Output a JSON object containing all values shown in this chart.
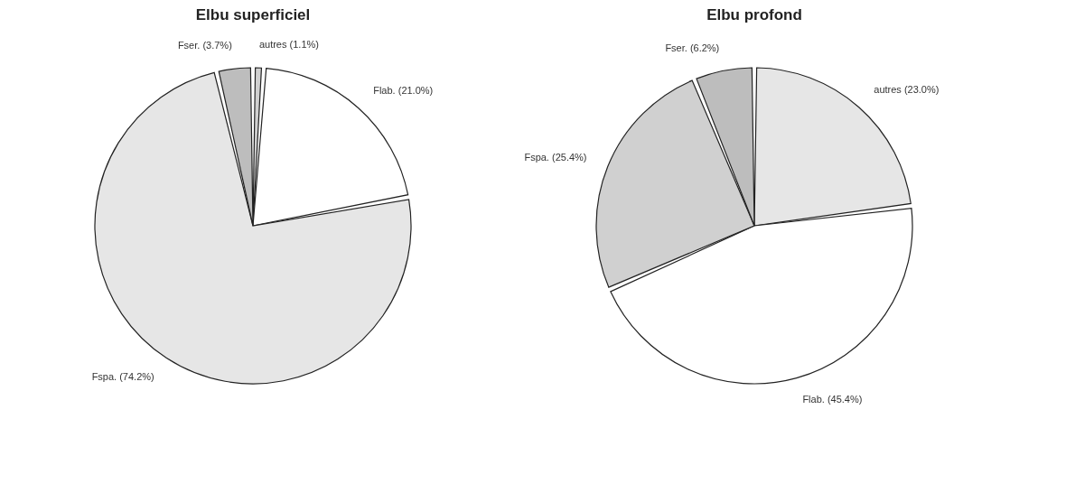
{
  "chart_data": [
    {
      "type": "pie",
      "title": "Elbu superficiel",
      "categories": [
        "autres (1.1%)",
        "Flab. (21.0%)",
        "Fspa. (74.2%)",
        "Fser. (3.7%)"
      ],
      "values": [
        1.1,
        21.0,
        74.2,
        3.7
      ],
      "colors": [
        "#d0d0d0",
        "#ffffff",
        "#e6e6e6",
        "#bdbdbd"
      ]
    },
    {
      "type": "pie",
      "title": "Elbu profond",
      "categories": [
        "autres (23.0%)",
        "Flab. (45.4%)",
        "Fspa. (25.4%)",
        "Fser. (6.2%)"
      ],
      "values": [
        23.0,
        45.4,
        25.4,
        6.2
      ],
      "colors": [
        "#e6e6e6",
        "#ffffff",
        "#d0d0d0",
        "#bdbdbd"
      ]
    }
  ]
}
